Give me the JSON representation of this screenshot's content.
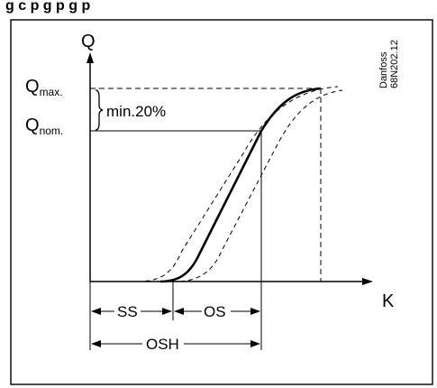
{
  "header": {
    "caption_partial": "g    c     p   g p     g p"
  },
  "axes": {
    "y_label": "Q",
    "x_label": "K"
  },
  "levels": {
    "q_max_main": "Q",
    "q_max_sub": "max.",
    "q_nom_main": "Q",
    "q_nom_sub": "nom.",
    "margin_note": "min.20%"
  },
  "ranges": {
    "ss": "SS",
    "os": "OS",
    "osh": "OSH"
  },
  "reference": {
    "maker": "Danfoss",
    "code": "68N202.12"
  },
  "colors": {
    "line": "#000000",
    "background": "#ffffff"
  }
}
